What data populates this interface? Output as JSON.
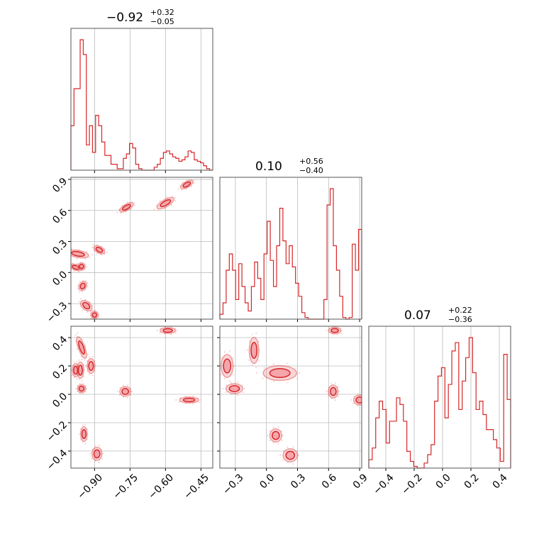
{
  "chart_data": {
    "type": "corner",
    "color": "#d62728",
    "fill_color": "#f4a6ab",
    "grid": true,
    "parameters": [
      {
        "title": {
          "value": "−0.92",
          "plus": "+0.32",
          "minus": "−0.05"
        },
        "range": [
          -1.0,
          -0.4
        ],
        "ticks": [
          -0.9,
          -0.75,
          -0.6,
          -0.45
        ],
        "tick_labels": [
          "−0.90",
          "−0.75",
          "−0.60",
          "−0.45"
        ]
      },
      {
        "title": {
          "value": "0.10",
          "plus": "+0.56",
          "minus": "−0.40"
        },
        "range": [
          -0.45,
          0.92
        ],
        "ticks": [
          -0.3,
          0.0,
          0.3,
          0.6,
          0.9
        ],
        "tick_labels": [
          "−0.3",
          "0.0",
          "0.3",
          "0.6",
          "0.9"
        ]
      },
      {
        "title": {
          "value": "0.07",
          "plus": "+0.22",
          "minus": "−0.36"
        },
        "range": [
          -0.52,
          0.48
        ],
        "ticks": [
          -0.4,
          -0.2,
          0.0,
          0.2,
          0.4
        ],
        "tick_labels": [
          "−0.4",
          "−0.2",
          "0.0",
          "0.2",
          "0.4"
        ]
      }
    ],
    "histograms": [
      {
        "param": 0,
        "values": [
          0.3,
          0.55,
          0.55,
          0.88,
          0.78,
          0.17,
          0.3,
          0.12,
          0.37,
          0.3,
          0.19,
          0.1,
          0.1,
          0.04,
          0.04,
          0.01,
          0.01,
          0.08,
          0.11,
          0.18,
          0.15,
          0.04,
          0.01,
          0,
          0,
          0,
          0,
          0.02,
          0.04,
          0.08,
          0.12,
          0.13,
          0.11,
          0.09,
          0.08,
          0.06,
          0.07,
          0.09,
          0.13,
          0.12,
          0.07,
          0.06,
          0.05,
          0.03,
          0.01,
          0
        ]
      },
      {
        "param": 1,
        "values": [
          0.03,
          0.1,
          0.3,
          0.4,
          0.3,
          0.12,
          0.34,
          0.2,
          0.1,
          0.05,
          0.2,
          0.35,
          0.25,
          0.12,
          0.4,
          0.6,
          0.36,
          0.2,
          0.45,
          0.68,
          0.48,
          0.34,
          0.45,
          0.32,
          0.22,
          0.14,
          0.04,
          0.01,
          0,
          0,
          0,
          0,
          0,
          0.12,
          0.7,
          0.8,
          0.45,
          0.3,
          0.14,
          0.01,
          0,
          0.01,
          0.46,
          0.3,
          0.55
        ]
      },
      {
        "param": 2,
        "values": [
          0.05,
          0.12,
          0.3,
          0.4,
          0.35,
          0.15,
          0.28,
          0.28,
          0.42,
          0.38,
          0.28,
          0.1,
          0.04,
          0.01,
          0,
          0,
          0.03,
          0.08,
          0.14,
          0.4,
          0.55,
          0.6,
          0.3,
          0.5,
          0.7,
          0.75,
          0.35,
          0.52,
          0.66,
          0.78,
          0.57,
          0.35,
          0.4,
          0.32,
          0.23,
          0.23,
          0.17,
          0.12,
          0.04,
          0.68,
          0.41
        ]
      }
    ],
    "contours": [
      {
        "x_param": 0,
        "y_param": 1,
        "blobs": [
          {
            "x": -0.97,
            "y": 0.18,
            "rx": 0.013,
            "ry": 0.09,
            "angle": 80
          },
          {
            "x": -0.98,
            "y": 0.05,
            "rx": 0.01,
            "ry": 0.05,
            "angle": 70
          },
          {
            "x": -0.955,
            "y": 0.06,
            "rx": 0.012,
            "ry": 0.03,
            "angle": 70
          },
          {
            "x": -0.95,
            "y": -0.13,
            "rx": 0.018,
            "ry": 0.03,
            "angle": 60
          },
          {
            "x": -0.935,
            "y": -0.32,
            "rx": 0.015,
            "ry": 0.055,
            "angle": 50
          },
          {
            "x": -0.9,
            "y": -0.41,
            "rx": 0.013,
            "ry": 0.03,
            "angle": 45
          },
          {
            "x": -0.88,
            "y": 0.22,
            "rx": 0.012,
            "ry": 0.05,
            "angle": 60
          },
          {
            "x": -0.765,
            "y": 0.63,
            "rx": 0.028,
            "ry": 0.025,
            "angle": 30
          },
          {
            "x": -0.6,
            "y": 0.67,
            "rx": 0.035,
            "ry": 0.03,
            "angle": 30
          },
          {
            "x": -0.51,
            "y": 0.85,
            "rx": 0.025,
            "ry": 0.025,
            "angle": 30
          }
        ]
      },
      {
        "x_param": 0,
        "y_param": 2,
        "blobs": [
          {
            "x": -0.98,
            "y": 0.17,
            "rx": 0.012,
            "ry": 0.04,
            "angle": 0
          },
          {
            "x": -0.955,
            "y": 0.33,
            "rx": 0.012,
            "ry": 0.07,
            "angle": 20
          },
          {
            "x": -0.96,
            "y": 0.17,
            "rx": 0.012,
            "ry": 0.05,
            "angle": 0
          },
          {
            "x": -0.955,
            "y": 0.04,
            "rx": 0.015,
            "ry": 0.025,
            "angle": 0
          },
          {
            "x": -0.915,
            "y": 0.2,
            "rx": 0.014,
            "ry": 0.045,
            "angle": 0
          },
          {
            "x": -0.945,
            "y": -0.28,
            "rx": 0.012,
            "ry": 0.045,
            "angle": 0
          },
          {
            "x": -0.89,
            "y": -0.42,
            "rx": 0.018,
            "ry": 0.04,
            "angle": 0
          },
          {
            "x": -0.77,
            "y": 0.02,
            "rx": 0.02,
            "ry": 0.03,
            "angle": 0
          },
          {
            "x": -0.59,
            "y": 0.45,
            "rx": 0.028,
            "ry": 0.018,
            "angle": 0
          },
          {
            "x": -0.5,
            "y": -0.04,
            "rx": 0.035,
            "ry": 0.018,
            "angle": 0
          }
        ]
      },
      {
        "x_param": 1,
        "y_param": 2,
        "blobs": [
          {
            "x": -0.38,
            "y": 0.2,
            "rx": 0.05,
            "ry": 0.07,
            "angle": 0
          },
          {
            "x": -0.12,
            "y": 0.31,
            "rx": 0.04,
            "ry": 0.08,
            "angle": 0
          },
          {
            "x": -0.31,
            "y": 0.04,
            "rx": 0.07,
            "ry": 0.03,
            "angle": 0
          },
          {
            "x": 0.13,
            "y": 0.15,
            "rx": 0.14,
            "ry": 0.045,
            "angle": 0
          },
          {
            "x": 0.09,
            "y": -0.29,
            "rx": 0.05,
            "ry": 0.04,
            "angle": 0
          },
          {
            "x": 0.23,
            "y": -0.43,
            "rx": 0.06,
            "ry": 0.04,
            "angle": 0
          },
          {
            "x": 0.66,
            "y": 0.45,
            "rx": 0.05,
            "ry": 0.02,
            "angle": 0
          },
          {
            "x": 0.645,
            "y": 0.02,
            "rx": 0.04,
            "ry": 0.04,
            "angle": 0
          },
          {
            "x": 0.9,
            "y": -0.04,
            "rx": 0.05,
            "ry": 0.03,
            "angle": 0
          }
        ]
      }
    ]
  }
}
